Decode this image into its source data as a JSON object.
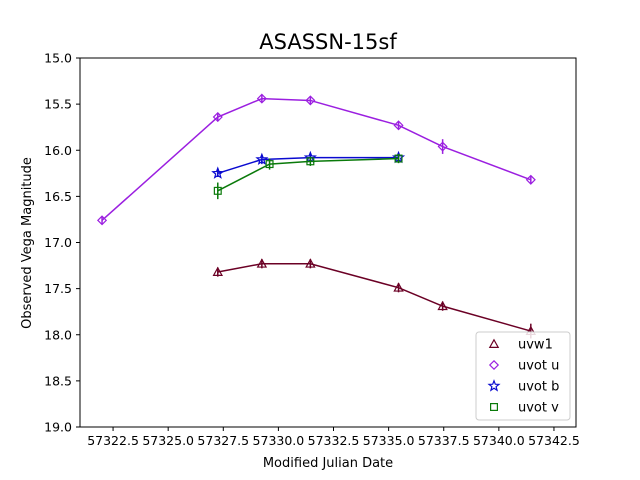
{
  "chart_data": {
    "type": "line",
    "title": "ASASSN-15sf",
    "xlabel": "Modified Julian Date",
    "ylabel": "Observed Vega Magnitude",
    "xlim": [
      57321.0,
      57343.5
    ],
    "ylim": [
      15.0,
      19.0
    ],
    "y_inverted": true,
    "grid": false,
    "legend_position": "lower-right",
    "x_ticks": [
      57322.5,
      57325.0,
      57327.5,
      57330.0,
      57332.5,
      57335.0,
      57337.5,
      57340.0,
      57342.5
    ],
    "x_tick_labels": [
      "57322.5",
      "57325.0",
      "57327.5",
      "57330.0",
      "57332.5",
      "57335.0",
      "57337.5",
      "57340.0",
      "57342.5"
    ],
    "y_ticks": [
      15.0,
      15.5,
      16.0,
      16.5,
      17.0,
      17.5,
      18.0,
      18.5,
      19.0
    ],
    "y_tick_labels": [
      "15.0",
      "15.5",
      "16.0",
      "16.5",
      "17.0",
      "17.5",
      "18.0",
      "18.5",
      "19.0"
    ],
    "series": [
      {
        "name": "uvw1",
        "color": "#6b0025",
        "marker": "triangle",
        "x": [
          57327.25,
          57329.25,
          57331.45,
          57335.45,
          57337.45,
          57341.45
        ],
        "y": [
          17.32,
          17.23,
          17.23,
          17.49,
          17.69,
          17.96
        ],
        "err": [
          0.05,
          0.05,
          0.05,
          0.05,
          0.05,
          0.08
        ]
      },
      {
        "name": "uvot u",
        "color": "#9b1fe0",
        "marker": "diamond",
        "x": [
          57322.0,
          57327.25,
          57329.25,
          57331.45,
          57335.45,
          57337.45,
          57341.45
        ],
        "y": [
          16.76,
          15.64,
          15.44,
          15.46,
          15.73,
          15.96,
          16.32
        ],
        "err": [
          0.04,
          0.04,
          0.04,
          0.04,
          0.04,
          0.08,
          0.04
        ]
      },
      {
        "name": "uvot b",
        "color": "#0a0ad0",
        "marker": "star",
        "x": [
          57327.25,
          57329.25,
          57331.45,
          57335.45
        ],
        "y": [
          16.25,
          16.1,
          16.08,
          16.08
        ],
        "err": [
          0.04,
          0.05,
          0.04,
          0.05
        ]
      },
      {
        "name": "uvot v",
        "color": "#0a7a0a",
        "marker": "square",
        "x": [
          57327.25,
          57329.6,
          57331.45,
          57335.45
        ],
        "y": [
          16.44,
          16.15,
          16.12,
          16.09
        ],
        "err": [
          0.09,
          0.06,
          0.05,
          0.05
        ]
      }
    ]
  }
}
